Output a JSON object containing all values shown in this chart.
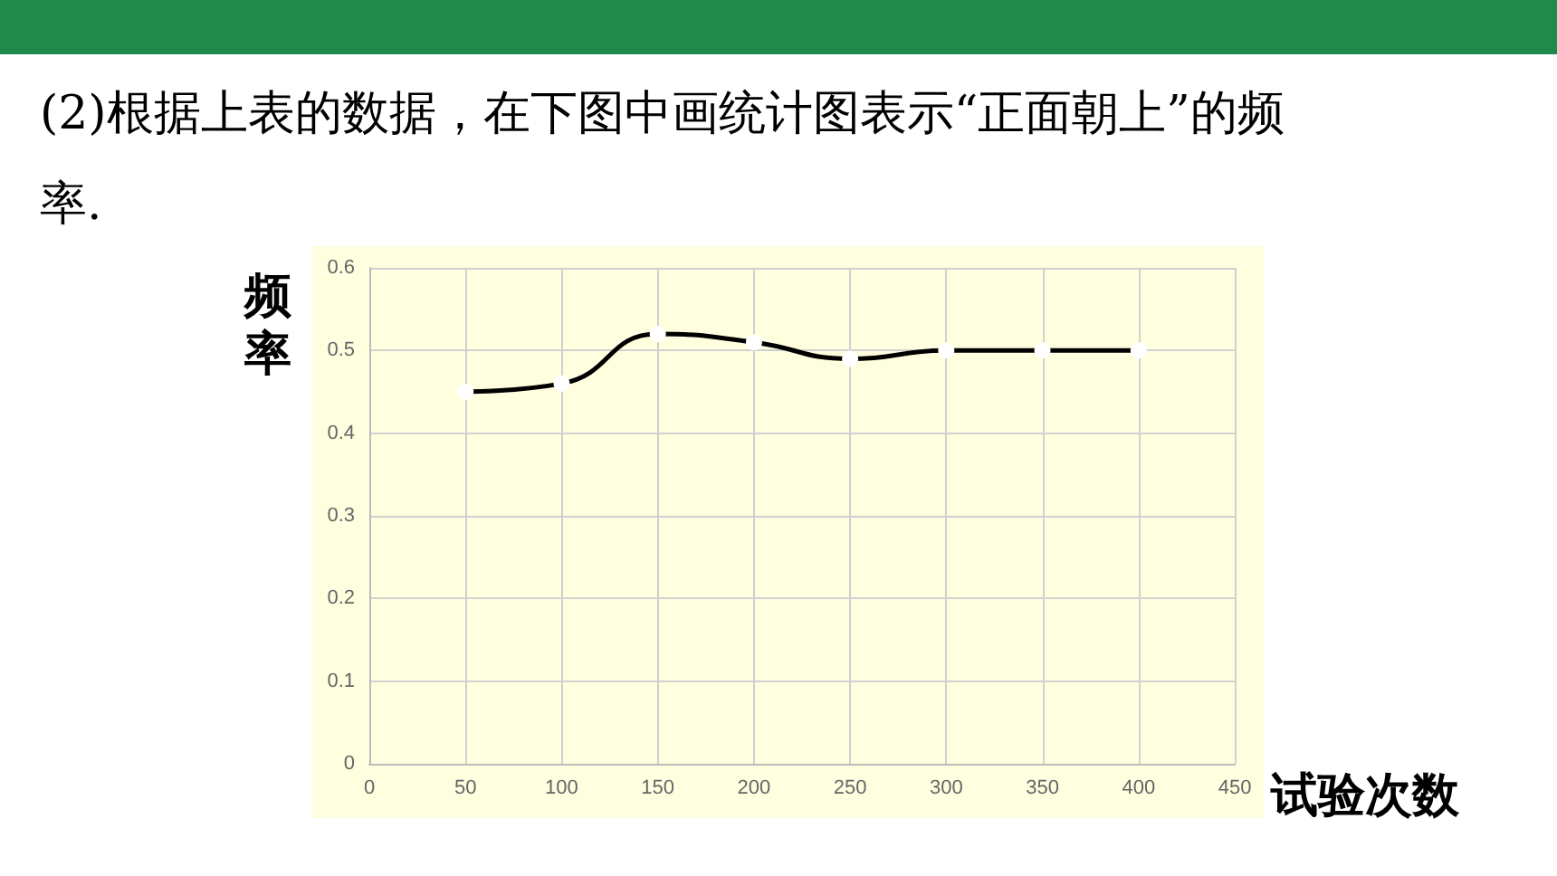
{
  "chart_data": {
    "type": "line",
    "title": "(2)根据上表的数据，在下图中画统计图表示“正面朝上”的频率.",
    "xlabel": "试验次数",
    "ylabel": "频率",
    "x": [
      50,
      100,
      150,
      200,
      250,
      300,
      350,
      400
    ],
    "series": [
      {
        "color": "#000000",
        "values": [
          0.45,
          0.46,
          0.52,
          0.51,
          0.49,
          0.5,
          0.5,
          0.5
        ]
      }
    ],
    "xlim": [
      0,
      450
    ],
    "xticks": [
      0,
      50,
      100,
      150,
      200,
      250,
      300,
      350,
      400,
      450
    ],
    "ylim": [
      0,
      0.6
    ],
    "yticks": [
      0,
      0.1,
      0.2,
      0.3,
      0.4,
      0.5,
      0.6
    ],
    "grid": true,
    "marker": "circle",
    "line_style": "solid"
  }
}
